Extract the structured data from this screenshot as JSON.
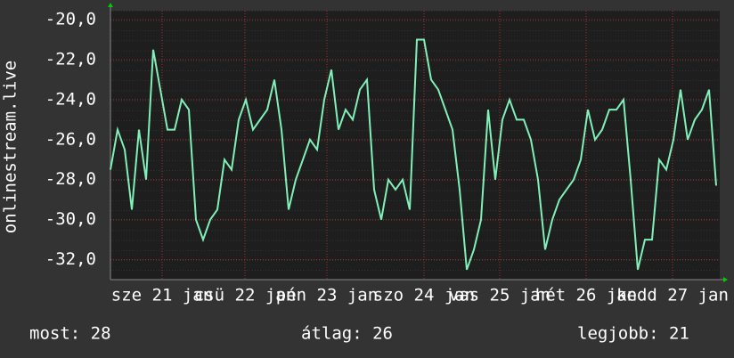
{
  "chart_data": {
    "type": "line",
    "ylabel": "onlinestream.live",
    "x": [
      0,
      2,
      4,
      6,
      8,
      10,
      12,
      14,
      16,
      18,
      20,
      22,
      24,
      26,
      28,
      30,
      32,
      34,
      36,
      38,
      40,
      42,
      44,
      46,
      48,
      50,
      52,
      54,
      56,
      58,
      60,
      62,
      64,
      66,
      68,
      70,
      72,
      74,
      76,
      78,
      80,
      82,
      84,
      86,
      88,
      90,
      92,
      94,
      96,
      98,
      100,
      102,
      104,
      106,
      108,
      110,
      112,
      114,
      116,
      118,
      120,
      122,
      124,
      126,
      128,
      130,
      132,
      134,
      136,
      138,
      140,
      142,
      144,
      146,
      148,
      150,
      152,
      154,
      156,
      158,
      160,
      162,
      164,
      166,
      168,
      170
    ],
    "series": [
      {
        "color": "#80f0b8",
        "values": [
          -27.5,
          -25.5,
          -26.5,
          -29.5,
          -25.5,
          -28,
          -21.5,
          -23.5,
          -25.5,
          -25.5,
          -24,
          -24.5,
          -30,
          -31,
          -30,
          -29.5,
          -27,
          -27.5,
          -25,
          -24,
          -25.5,
          -25,
          -24.5,
          -23,
          -25.5,
          -29.5,
          -28,
          -27,
          -26,
          -26.5,
          -24,
          -22.5,
          -25.5,
          -24.5,
          -25,
          -23.5,
          -23,
          -28.5,
          -30,
          -28,
          -28.5,
          -28,
          -29.5,
          -21,
          -21,
          -23,
          -23.5,
          -24.5,
          -25.5,
          -28.5,
          -32.5,
          -31.5,
          -30,
          -24.5,
          -28,
          -25,
          -24,
          -25,
          -25,
          -26,
          -28,
          -31.5,
          -30,
          -29,
          -28.5,
          -28,
          -27,
          -24.5,
          -26,
          -25.5,
          -24.5,
          -24.5,
          -24,
          -28,
          -32.5,
          -31,
          -31,
          -27,
          -27.5,
          -26,
          -23.5,
          -26,
          -25,
          -24.5,
          -23.5,
          -28.3
        ]
      }
    ],
    "xlim": [
      0,
      171
    ],
    "xticks": [
      {
        "value": 14.5,
        "label": "sze 21 jan"
      },
      {
        "value": 37.75,
        "label": "csü 22 jan"
      },
      {
        "value": 60.75,
        "label": "pén 23 jan"
      },
      {
        "value": 88,
        "label": "szo 24 jan"
      },
      {
        "value": 109.25,
        "label": "vas 25 jan"
      },
      {
        "value": 133.5,
        "label": "hét 26 jan"
      },
      {
        "value": 157.75,
        "label": "kedd 27 jan"
      }
    ],
    "ylim": [
      -33,
      -19.55
    ],
    "yticks": [
      {
        "value": -20,
        "label": "-20,0"
      },
      {
        "value": -22,
        "label": "-22,0"
      },
      {
        "value": -24,
        "label": "-24,0"
      },
      {
        "value": -26,
        "label": "-26,0"
      },
      {
        "value": -28,
        "label": "-28,0"
      },
      {
        "value": -30,
        "label": "-30,0"
      },
      {
        "value": -32,
        "label": "-32,0"
      }
    ],
    "grid": true,
    "stats": [
      "most: 28",
      "átlag: 26",
      "legjobb: 21"
    ]
  }
}
